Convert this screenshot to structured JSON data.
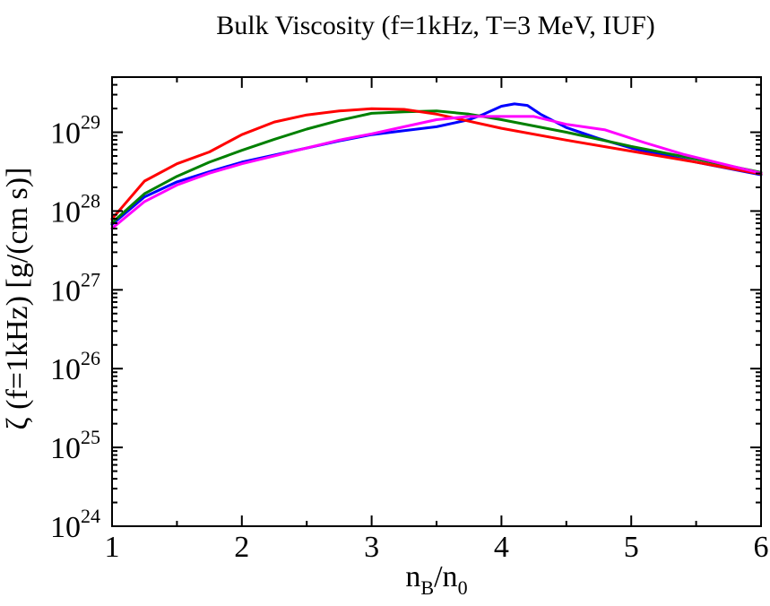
{
  "chart_data": {
    "type": "line",
    "title": "Bulk Viscosity (f=1kHz, T=3 MeV, IUF)",
    "xlabel": {
      "main": "n",
      "sub1": "B",
      "mid": "/n",
      "sub2": "0"
    },
    "ylabel": "ζ (f=1kHz) [g/(cm s)]",
    "xlim": [
      1,
      6
    ],
    "ylog_exp_range": [
      24,
      29.7
    ],
    "x_ticks": [
      {
        "value": 1,
        "label": "1"
      },
      {
        "value": 2,
        "label": "2"
      },
      {
        "value": 3,
        "label": "3"
      },
      {
        "value": 4,
        "label": "4"
      },
      {
        "value": 5,
        "label": "5"
      },
      {
        "value": 6,
        "label": "6"
      }
    ],
    "y_ticks": [
      {
        "exp": 24,
        "base": "10",
        "sup": "24"
      },
      {
        "exp": 25,
        "base": "10",
        "sup": "25"
      },
      {
        "exp": 26,
        "base": "10",
        "sup": "26"
      },
      {
        "exp": 27,
        "base": "10",
        "sup": "27"
      },
      {
        "exp": 28,
        "base": "10",
        "sup": "28"
      },
      {
        "exp": 29,
        "base": "10",
        "sup": "29"
      }
    ],
    "grid": false,
    "legend": "none",
    "series": [
      {
        "name": "blue",
        "color": "#0000ff",
        "x": [
          1.0,
          1.25,
          1.5,
          1.75,
          2.0,
          2.25,
          2.5,
          2.75,
          3.0,
          3.25,
          3.5,
          3.75,
          3.85,
          4.0,
          4.1,
          4.2,
          4.3,
          4.5,
          4.75,
          5.0,
          5.5,
          6.0
        ],
        "log10": [
          27.83,
          28.18,
          28.37,
          28.5,
          28.62,
          28.71,
          28.8,
          28.89,
          28.97,
          29.02,
          29.07,
          29.16,
          29.22,
          29.33,
          29.36,
          29.34,
          29.23,
          29.06,
          28.92,
          28.8,
          28.62,
          28.46
        ]
      },
      {
        "name": "green",
        "color": "#008000",
        "x": [
          1.0,
          1.25,
          1.5,
          1.75,
          2.0,
          2.25,
          2.5,
          2.75,
          3.0,
          3.25,
          3.5,
          3.75,
          4.0,
          4.25,
          4.5,
          4.75,
          5.0,
          5.5,
          6.0
        ],
        "log10": [
          27.85,
          28.22,
          28.44,
          28.62,
          28.77,
          28.91,
          29.04,
          29.15,
          29.24,
          29.26,
          29.27,
          29.23,
          29.16,
          29.08,
          29.0,
          28.91,
          28.82,
          28.66,
          28.49
        ]
      },
      {
        "name": "red",
        "color": "#ff0000",
        "x": [
          1.0,
          1.25,
          1.5,
          1.75,
          2.0,
          2.25,
          2.5,
          2.75,
          3.0,
          3.25,
          3.5,
          3.75,
          4.0,
          4.5,
          5.0,
          5.5,
          6.0
        ],
        "log10": [
          27.9,
          28.38,
          28.6,
          28.75,
          28.97,
          29.13,
          29.22,
          29.27,
          29.3,
          29.29,
          29.23,
          29.14,
          29.05,
          28.9,
          28.76,
          28.62,
          28.47
        ]
      },
      {
        "name": "magenta",
        "color": "#ff00ff",
        "x": [
          1.0,
          1.25,
          1.5,
          1.75,
          2.0,
          2.25,
          2.5,
          2.75,
          3.0,
          3.25,
          3.5,
          3.75,
          4.0,
          4.25,
          4.5,
          4.8,
          5.1,
          5.4,
          5.7,
          6.0
        ],
        "log10": [
          27.78,
          28.12,
          28.33,
          28.48,
          28.6,
          28.7,
          28.8,
          28.9,
          28.98,
          29.07,
          29.16,
          29.2,
          29.2,
          29.2,
          29.1,
          29.03,
          28.87,
          28.72,
          28.6,
          28.48
        ]
      }
    ]
  }
}
